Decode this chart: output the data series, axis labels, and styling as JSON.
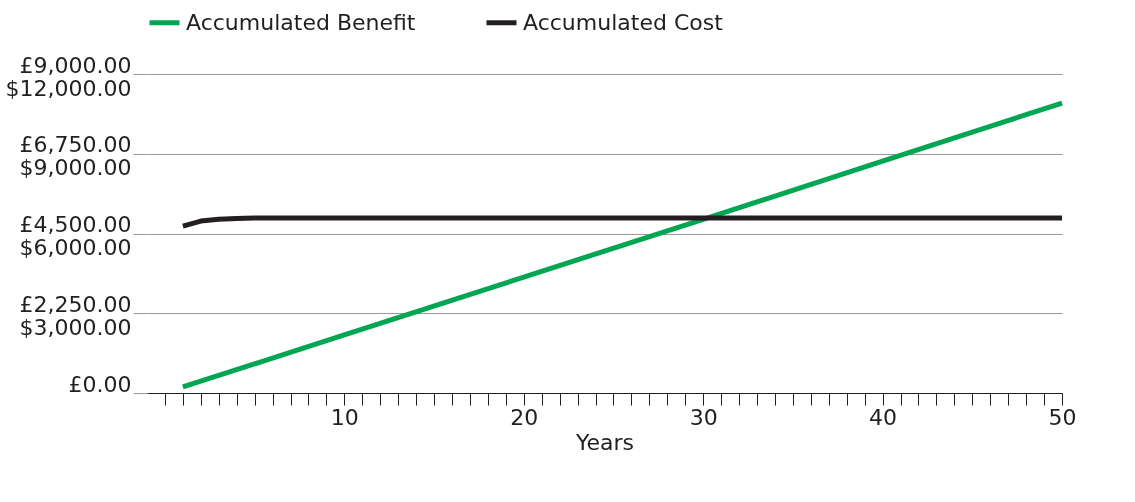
{
  "chart_data": {
    "type": "line",
    "xlabel": "Years",
    "legend": "top",
    "grid": "y",
    "marker": "none",
    "line_style": "solid",
    "xlim": [
      -1,
      50
    ],
    "xticks": [
      {
        "value": 0,
        "label": null
      },
      {
        "value": 1,
        "label": null
      },
      {
        "value": 2,
        "label": null
      },
      {
        "value": 3,
        "label": null
      },
      {
        "value": 4,
        "label": null
      },
      {
        "value": 5,
        "label": null
      },
      {
        "value": 6,
        "label": null
      },
      {
        "value": 7,
        "label": null
      },
      {
        "value": 8,
        "label": null
      },
      {
        "value": 9,
        "label": null
      },
      10,
      {
        "value": 11,
        "label": null
      },
      {
        "value": 12,
        "label": null
      },
      {
        "value": 13,
        "label": null
      },
      {
        "value": 14,
        "label": null
      },
      {
        "value": 15,
        "label": null
      },
      {
        "value": 16,
        "label": null
      },
      {
        "value": 17,
        "label": null
      },
      {
        "value": 18,
        "label": null
      },
      {
        "value": 19,
        "label": null
      },
      20,
      {
        "value": 21,
        "label": null
      },
      {
        "value": 22,
        "label": null
      },
      {
        "value": 23,
        "label": null
      },
      {
        "value": 24,
        "label": null
      },
      {
        "value": 25,
        "label": null
      },
      {
        "value": 26,
        "label": null
      },
      {
        "value": 27,
        "label": null
      },
      {
        "value": 28,
        "label": null
      },
      {
        "value": 29,
        "label": null
      },
      30,
      {
        "value": 31,
        "label": null
      },
      {
        "value": 32,
        "label": null
      },
      {
        "value": 33,
        "label": null
      },
      {
        "value": 34,
        "label": null
      },
      {
        "value": 35,
        "label": null
      },
      {
        "value": 36,
        "label": null
      },
      {
        "value": 37,
        "label": null
      },
      {
        "value": 38,
        "label": null
      },
      {
        "value": 39,
        "label": null
      },
      40,
      {
        "value": 41,
        "label": null
      },
      {
        "value": 42,
        "label": null
      },
      {
        "value": 43,
        "label": null
      },
      {
        "value": 44,
        "label": null
      },
      {
        "value": 45,
        "label": null
      },
      {
        "value": 46,
        "label": null
      },
      {
        "value": 47,
        "label": null
      },
      {
        "value": 48,
        "label": null
      },
      {
        "value": 49,
        "label": null
      },
      50
    ],
    "ylim": [
      0,
      9000
    ],
    "yticks": [
      {
        "value": 0,
        "label": "£0.00"
      },
      {
        "value": 2250,
        "label": "£2,250.00"
      },
      {
        "value": 4500,
        "label": "£4,500.00"
      },
      {
        "value": 6750,
        "label": "£6,750.00"
      },
      {
        "value": 9000,
        "label": "£9,000.00"
      }
    ],
    "y2lim": [
      0,
      12000
    ],
    "y2ticks": [
      {
        "value": 3000,
        "label": "$3,000.00"
      },
      {
        "value": 6000,
        "label": "$6,000.00"
      },
      {
        "value": 9000,
        "label": "$9,000.00"
      },
      {
        "value": 12000,
        "label": "$12,000.00"
      }
    ],
    "series": [
      {
        "name": "Accumulated Benefit",
        "color": "#00a651",
        "x": [
          1,
          10,
          20,
          30,
          40,
          50
        ],
        "values": [
          170,
          1640,
          3270,
          4900,
          6540,
          8180
        ]
      },
      {
        "name": "Accumulated Cost",
        "color": "#231f20",
        "x": [
          1,
          2,
          3,
          4,
          5,
          7,
          10,
          20,
          30,
          40,
          50
        ],
        "values": [
          4710,
          4850,
          4900,
          4920,
          4940,
          4940,
          4940,
          4940,
          4940,
          4940,
          4940
        ]
      }
    ]
  }
}
